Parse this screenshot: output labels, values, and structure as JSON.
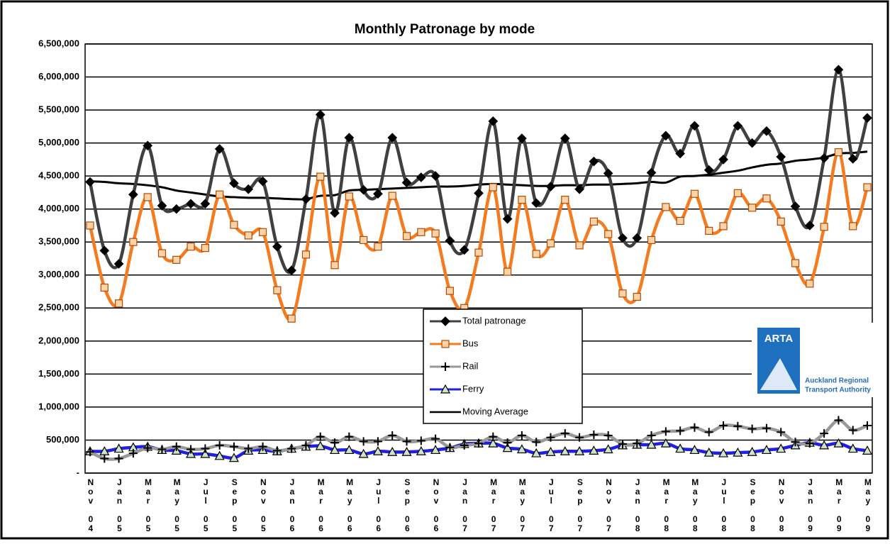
{
  "chart_data": {
    "type": "line",
    "title": "Monthly Patronage by mode",
    "categories": [
      "Nov 04",
      null,
      "Jan 05",
      null,
      "Mar 05",
      null,
      "May 05",
      null,
      "Jul 05",
      null,
      "Sep 05",
      null,
      "Nov 05",
      null,
      "Jan 06",
      null,
      "Mar 06",
      null,
      "May 06",
      null,
      "Jul 06",
      null,
      "Sep 06",
      null,
      "Nov 06",
      null,
      "Jan 07",
      null,
      "Mar 07",
      null,
      "May 07",
      null,
      "Jul 07",
      null,
      "Sep 07",
      null,
      "Nov 07",
      null,
      "Jan 08",
      null,
      "Mar 08",
      null,
      "May 08",
      null,
      "Jul 08",
      null,
      "Sep 08",
      null,
      "Nov 08",
      null,
      "Jan 09",
      null,
      "Mar 09",
      null,
      "May 09"
    ],
    "ylim": [
      0,
      6500000
    ],
    "yticks": [
      {
        "value": 0,
        "label": "-"
      },
      {
        "value": 500000,
        "label": "500,000"
      },
      {
        "value": 1000000,
        "label": "1,000,000"
      },
      {
        "value": 1500000,
        "label": "1,500,000"
      },
      {
        "value": 2000000,
        "label": "2,000,000"
      },
      {
        "value": 2500000,
        "label": "2,500,000"
      },
      {
        "value": 3000000,
        "label": "3,000,000"
      },
      {
        "value": 3500000,
        "label": "3,500,000"
      },
      {
        "value": 4000000,
        "label": "4,000,000"
      },
      {
        "value": 4500000,
        "label": "4,500,000"
      },
      {
        "value": 5000000,
        "label": "5,000,000"
      },
      {
        "value": 5500000,
        "label": "5,500,000"
      },
      {
        "value": 6000000,
        "label": "6,000,000"
      },
      {
        "value": 6500000,
        "label": "6,500,000"
      }
    ],
    "grid": true,
    "series": [
      {
        "name": "Total patronage",
        "color": "#404040",
        "marker": "diamond",
        "values": [
          4410000,
          3370000,
          3170000,
          4220000,
          4960000,
          4050000,
          4000000,
          4080000,
          4080000,
          4910000,
          4390000,
          4300000,
          4420000,
          3430000,
          3070000,
          4150000,
          5430000,
          3940000,
          5080000,
          4290000,
          4230000,
          5080000,
          4400000,
          4480000,
          4500000,
          3520000,
          3380000,
          4240000,
          5330000,
          3850000,
          5070000,
          4090000,
          4340000,
          5070000,
          4300000,
          4720000,
          4540000,
          3560000,
          3560000,
          4550000,
          5110000,
          4840000,
          5260000,
          4590000,
          4750000,
          5260000,
          5000000,
          5180000,
          4790000,
          4040000,
          3750000,
          4770000,
          6110000,
          4760000,
          5380000
        ]
      },
      {
        "name": "Bus",
        "color": "#f47b20",
        "marker": "square",
        "values": [
          3750000,
          2810000,
          2570000,
          3500000,
          4180000,
          3330000,
          3230000,
          3430000,
          3410000,
          4220000,
          3760000,
          3600000,
          3650000,
          2770000,
          2340000,
          3310000,
          4490000,
          3150000,
          4190000,
          3530000,
          3430000,
          4200000,
          3590000,
          3650000,
          3630000,
          2760000,
          2500000,
          3340000,
          4330000,
          3050000,
          4140000,
          3320000,
          3480000,
          4140000,
          3450000,
          3810000,
          3620000,
          2720000,
          2670000,
          3530000,
          4030000,
          3820000,
          4230000,
          3670000,
          3740000,
          4240000,
          4020000,
          4160000,
          3810000,
          3180000,
          2870000,
          3730000,
          4860000,
          3740000,
          4330000
        ]
      },
      {
        "name": "Rail",
        "color": "#999999",
        "marker": "plus",
        "values": [
          320000,
          220000,
          220000,
          300000,
          380000,
          360000,
          400000,
          360000,
          370000,
          420000,
          400000,
          370000,
          400000,
          340000,
          370000,
          420000,
          550000,
          460000,
          550000,
          480000,
          480000,
          570000,
          480000,
          490000,
          520000,
          390000,
          420000,
          450000,
          550000,
          460000,
          570000,
          470000,
          540000,
          600000,
          540000,
          580000,
          570000,
          440000,
          450000,
          570000,
          630000,
          640000,
          690000,
          620000,
          720000,
          710000,
          670000,
          680000,
          620000,
          470000,
          450000,
          600000,
          800000,
          650000,
          720000
        ]
      },
      {
        "name": "Ferry",
        "color": "#2020e0",
        "marker": "triangle",
        "values": [
          330000,
          330000,
          370000,
          390000,
          400000,
          350000,
          340000,
          290000,
          290000,
          260000,
          230000,
          340000,
          350000,
          330000,
          370000,
          400000,
          410000,
          350000,
          350000,
          290000,
          330000,
          320000,
          320000,
          330000,
          350000,
          380000,
          440000,
          450000,
          450000,
          380000,
          360000,
          300000,
          320000,
          330000,
          330000,
          340000,
          360000,
          420000,
          430000,
          430000,
          450000,
          370000,
          350000,
          310000,
          300000,
          310000,
          320000,
          350000,
          370000,
          420000,
          460000,
          420000,
          450000,
          370000,
          340000
        ]
      },
      {
        "name": "Moving Average",
        "color": "#000000",
        "values": [
          4420000,
          4410000,
          4390000,
          4380000,
          4360000,
          4330000,
          4280000,
          4250000,
          4220000,
          4190000,
          4180000,
          4170000,
          4170000,
          4160000,
          4150000,
          4150000,
          4200000,
          4210000,
          4280000,
          4290000,
          4300000,
          4310000,
          4320000,
          4330000,
          4340000,
          4340000,
          4350000,
          4370000,
          4380000,
          4370000,
          4360000,
          4350000,
          4350000,
          4360000,
          4360000,
          4370000,
          4370000,
          4380000,
          4390000,
          4410000,
          4400000,
          4490000,
          4500000,
          4520000,
          4550000,
          4580000,
          4630000,
          4670000,
          4690000,
          4730000,
          4750000,
          4780000,
          4840000,
          4850000,
          4870000
        ]
      }
    ]
  },
  "logo": {
    "name": "ARTA",
    "lines": [
      "Auckland Regional",
      "Transport Authority"
    ]
  }
}
